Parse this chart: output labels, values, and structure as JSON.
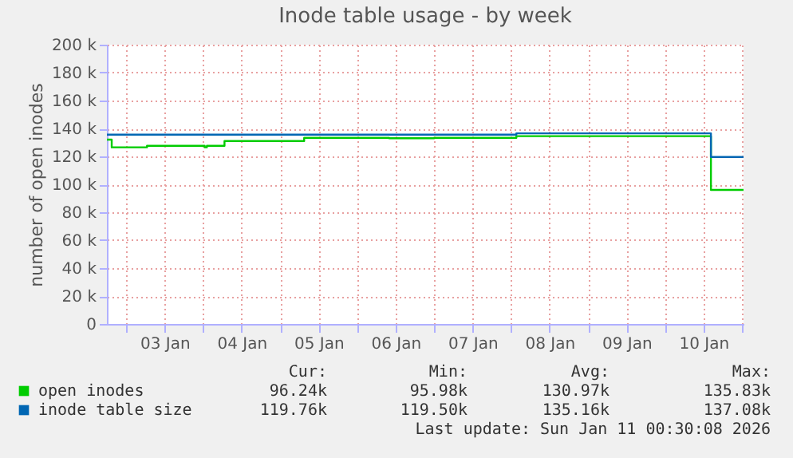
{
  "chart_data": {
    "type": "step",
    "title": "Inode table usage - by week",
    "ylabel": "number of open inodes",
    "xlim": [
      "2026-01-02T18:00",
      "2026-01-11T00:30"
    ],
    "xticks": [
      {
        "value": "2026-01-03T00:00",
        "label": null
      },
      {
        "value": "2026-01-03T12:00",
        "label": "03 Jan"
      },
      {
        "value": "2026-01-04T00:00",
        "label": null
      },
      {
        "value": "2026-01-04T12:00",
        "label": "04 Jan"
      },
      {
        "value": "2026-01-05T00:00",
        "label": null
      },
      {
        "value": "2026-01-05T12:00",
        "label": "05 Jan"
      },
      {
        "value": "2026-01-06T00:00",
        "label": null
      },
      {
        "value": "2026-01-06T12:00",
        "label": "06 Jan"
      },
      {
        "value": "2026-01-07T00:00",
        "label": null
      },
      {
        "value": "2026-01-07T12:00",
        "label": "07 Jan"
      },
      {
        "value": "2026-01-08T00:00",
        "label": null
      },
      {
        "value": "2026-01-08T12:00",
        "label": "08 Jan"
      },
      {
        "value": "2026-01-09T00:00",
        "label": null
      },
      {
        "value": "2026-01-09T12:00",
        "label": "09 Jan"
      },
      {
        "value": "2026-01-10T00:00",
        "label": null
      },
      {
        "value": "2026-01-10T12:00",
        "label": "10 Jan"
      },
      {
        "value": "2026-01-11T00:00",
        "label": null
      }
    ],
    "ylim": [
      0,
      200000
    ],
    "yticks": [
      {
        "value": 0,
        "label": "0"
      },
      {
        "value": 20000,
        "label": "20 k"
      },
      {
        "value": 40000,
        "label": "40 k"
      },
      {
        "value": 60000,
        "label": "60 k"
      },
      {
        "value": 80000,
        "label": "80 k"
      },
      {
        "value": 100000,
        "label": "100 k"
      },
      {
        "value": 120000,
        "label": "120 k"
      },
      {
        "value": 140000,
        "label": "140 k"
      },
      {
        "value": 160000,
        "label": "160 k"
      },
      {
        "value": 180000,
        "label": "180 k"
      },
      {
        "value": 200000,
        "label": "200 k"
      }
    ],
    "grid": true,
    "legend": "bottom",
    "series": [
      {
        "name": "open inodes",
        "color": "#00cc00",
        "x": [
          "2026-01-02T18:00",
          "2026-01-02T19:30",
          "2026-01-03T06:30",
          "2026-01-04T00:30",
          "2026-01-04T01:10",
          "2026-01-04T06:40",
          "2026-01-05T07:30",
          "2026-01-06T10:00",
          "2026-01-07T00:00",
          "2026-01-08T01:40",
          "2026-01-10T14:20",
          "2026-01-11T00:30"
        ],
        "values": [
          132000,
          126500,
          127600,
          126500,
          127600,
          131000,
          133300,
          133000,
          133300,
          134500,
          96000,
          96000
        ]
      },
      {
        "name": "inode table size",
        "color": "#0066b3",
        "x": [
          "2026-01-02T18:00",
          "2026-01-08T01:40",
          "2026-01-10T14:20",
          "2026-01-11T00:30"
        ],
        "values": [
          135600,
          136500,
          119600,
          119600
        ]
      }
    ],
    "annotations": [
      "Cur:",
      "Min:",
      "Avg:",
      "Max:",
      "96.24k",
      "95.98k",
      "130.97k",
      "135.83k",
      "119.76k",
      "119.50k",
      "135.16k",
      "137.08k",
      "Last update: Sun Jan 11 00:30:08 2026"
    ]
  }
}
